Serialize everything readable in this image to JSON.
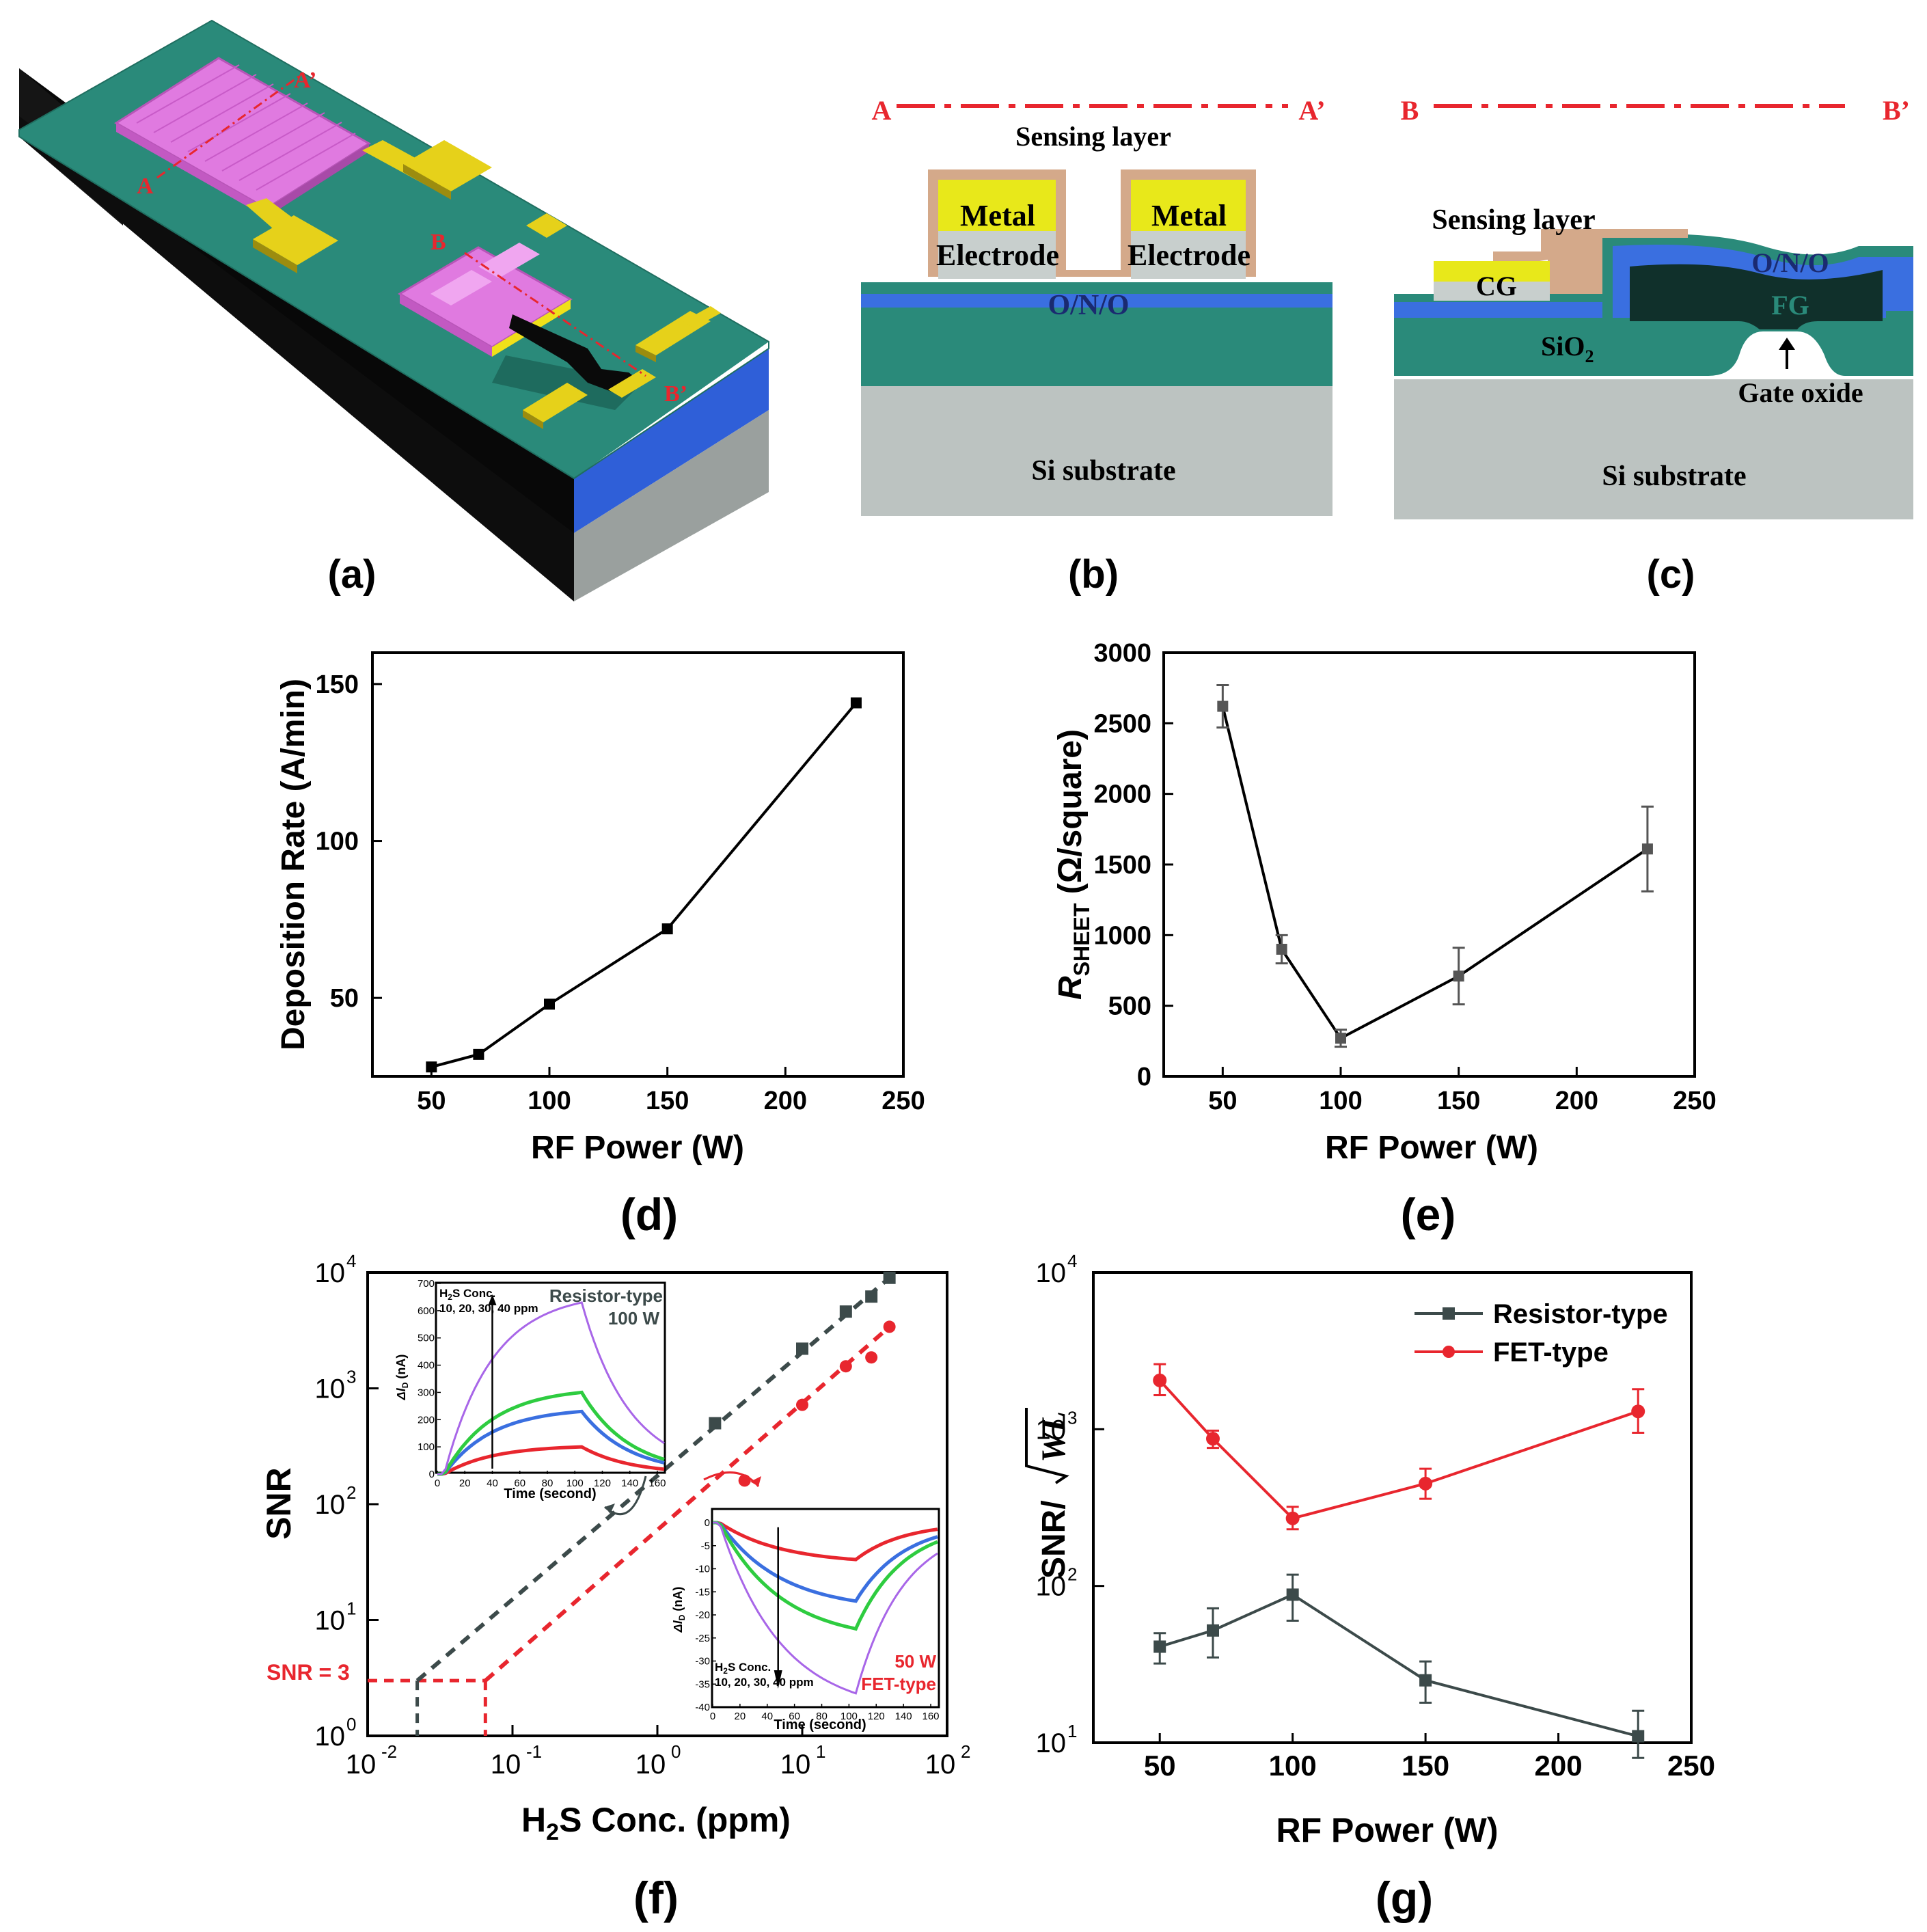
{
  "panels": {
    "a": {
      "label": "(a)",
      "cut_a": "A",
      "cut_a2": "A’",
      "cut_b": "B",
      "cut_b2": "B’"
    },
    "b": {
      "label": "(b)",
      "cut_left": "A",
      "cut_right": "A’",
      "sensing_layer": "Sensing layer",
      "metal": "Metal",
      "electrode": "Electrode",
      "ono": "O/N/O",
      "substrate": "Si substrate"
    },
    "c": {
      "label": "(c)",
      "cut_left": "B",
      "cut_right": "B’",
      "sensing_layer": "Sensing layer",
      "cg": "CG",
      "ono": "O/N/O",
      "fg": "FG",
      "sio2": "SiO",
      "sio2_sub": "2",
      "gate_oxide": "Gate oxide",
      "substrate": "Si substrate"
    },
    "d": {
      "label": "(d)"
    },
    "e": {
      "label": "(e)"
    },
    "f": {
      "label": "(f)"
    },
    "g": {
      "label": "(g)"
    }
  },
  "colors": {
    "red": "#e8262e",
    "dark": "#3c4a4a",
    "teal": "#2a8a7a",
    "blue": "#3a6fe0",
    "pink": "#e070e0",
    "yellow": "#e8e81a",
    "gray": "#b8bfbd",
    "tan": "#d4a98a",
    "green": "#2ecc40",
    "purple": "#a866e8",
    "dkteal": "#10302b"
  },
  "chart_data": [
    {
      "id": "d",
      "type": "line",
      "xlabel": "RF Power (W)",
      "ylabel": "Deposition Rate (A/min)",
      "xlim": [
        25,
        250
      ],
      "ylim": [
        25,
        160
      ],
      "xticks": [
        50,
        100,
        150,
        200,
        250
      ],
      "yticks": [
        50,
        100,
        150
      ],
      "series": [
        {
          "x": [
            50,
            70,
            100,
            150,
            230
          ],
          "y": [
            28,
            32,
            48,
            72,
            144
          ]
        }
      ]
    },
    {
      "id": "e",
      "type": "line",
      "xlabel": "RF Power (W)",
      "ylabel_main": "R",
      "ylabel_sub": "SHEET",
      "ylabel_unit": " (Ω/square)",
      "xlim": [
        25,
        250
      ],
      "ylim": [
        0,
        3000
      ],
      "xticks": [
        50,
        100,
        150,
        200,
        250
      ],
      "yticks": [
        0,
        500,
        1000,
        1500,
        2000,
        2500,
        3000
      ],
      "series": [
        {
          "x": [
            50,
            75,
            100,
            150,
            230
          ],
          "y": [
            2620,
            900,
            270,
            710,
            1610
          ],
          "err": [
            150,
            100,
            60,
            200,
            300
          ]
        }
      ]
    },
    {
      "id": "f",
      "type": "scatter",
      "xlabel_main": "H",
      "xlabel_sub": "2",
      "xlabel_rest": "S Conc. (ppm)",
      "ylabel": "SNR",
      "xscale": "log",
      "yscale": "log",
      "xlim": [
        0.01,
        100
      ],
      "ylim": [
        1,
        10000
      ],
      "xtick_base": [
        "10",
        "10",
        "10",
        "10",
        "10"
      ],
      "xtick_exp": [
        "-2",
        "-1",
        "0",
        "1",
        "2"
      ],
      "ytick_base": [
        "10",
        "10",
        "10",
        "10",
        "10"
      ],
      "ytick_exp": [
        "0",
        "1",
        "2",
        "3",
        "4"
      ],
      "annotation": "SNR = 3",
      "series": [
        {
          "x": [
            2.5,
            10,
            20,
            30,
            40
          ],
          "y": [
            500,
            2200,
            4600,
            6200,
            9000
          ],
          "fit_from": 0.022
        },
        {
          "x": [
            4,
            10,
            20,
            30,
            40
          ],
          "y": [
            160,
            720,
            1550,
            1850,
            3400
          ],
          "fit_from": 0.065
        }
      ],
      "inset_top": {
        "title_line1_main": "H",
        "title_line1_sub": "2",
        "title_line1_rest": "S Conc.",
        "title_line2": "10, 20, 30, 40 ppm",
        "type_label": "Resistor-type",
        "power_label": "100 W",
        "xlabel": "Time (second)",
        "ylabel_main": "ΔI",
        "ylabel_sub": "D",
        "ylabel_unit": " (nA)",
        "xticks": [
          "0",
          "20",
          "40",
          "60",
          "80",
          "100",
          "120",
          "140",
          "160"
        ],
        "yticks": [
          "0",
          "100",
          "200",
          "300",
          "400",
          "500",
          "600",
          "700"
        ],
        "peaks": [
          100,
          230,
          300,
          630
        ]
      },
      "inset_bottom": {
        "title_line1_main": "H",
        "title_line1_sub": "2",
        "title_line1_rest": "S Conc.",
        "title_line2": "10, 20, 30, 40 ppm",
        "type_label": "FET-type",
        "power_label": "50 W",
        "xlabel": "Time (second)",
        "ylabel_main": "ΔI",
        "ylabel_sub": "D",
        "ylabel_unit": " (nA)",
        "xticks": [
          "0",
          "20",
          "40",
          "60",
          "80",
          "100",
          "120",
          "140",
          "160"
        ],
        "yticks": [
          "0",
          "-5",
          "-10",
          "-15",
          "-20",
          "-25",
          "-30",
          "-35",
          "-40"
        ],
        "peaks": [
          -8,
          -17,
          -23,
          -37
        ]
      }
    },
    {
      "id": "g",
      "type": "line",
      "xlabel": "RF Power (W)",
      "ylabel_main": "SNR/",
      "ylabel_root": "WL",
      "xlim": [
        25,
        250
      ],
      "ylim": [
        10,
        10000
      ],
      "yscale": "log",
      "xticks": [
        50,
        100,
        150,
        200,
        250
      ],
      "ytick_base": [
        "10",
        "10",
        "10",
        "10"
      ],
      "ytick_exp": [
        "1",
        "2",
        "3",
        "4"
      ],
      "legend": "top-right",
      "series": [
        {
          "name": "Resistor-type",
          "x": [
            50,
            70,
            100,
            150,
            230
          ],
          "y": [
            41,
            52,
            88,
            25,
            11
          ],
          "err_lo": [
            32,
            35,
            60,
            18,
            8
          ],
          "err_hi": [
            50,
            72,
            118,
            33,
            16
          ]
        },
        {
          "name": "FET-type",
          "x": [
            50,
            70,
            100,
            150,
            230
          ],
          "y": [
            2050,
            870,
            270,
            450,
            1300
          ],
          "err_lo": [
            1650,
            760,
            230,
            360,
            950
          ],
          "err_hi": [
            2600,
            980,
            320,
            560,
            1800
          ]
        }
      ]
    }
  ]
}
